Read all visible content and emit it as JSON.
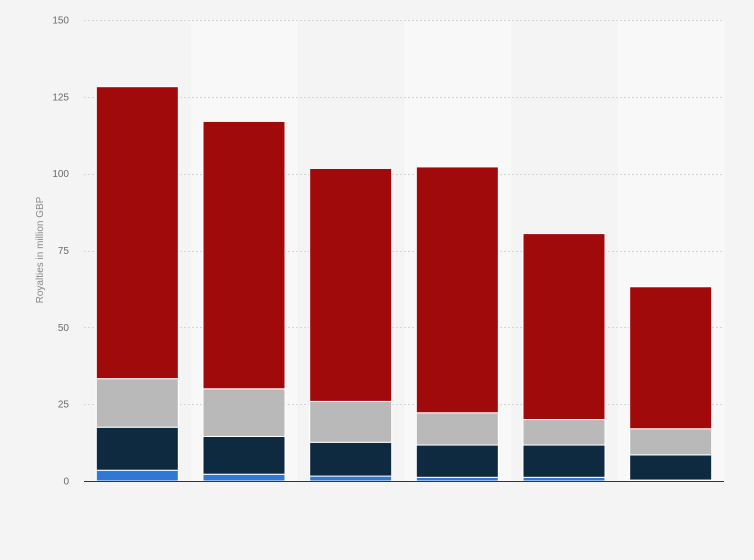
{
  "chart_data": {
    "type": "bar",
    "stacked": true,
    "title": "",
    "xlabel": "",
    "ylabel": "Royalties in million GBP",
    "ylim": [
      0,
      150
    ],
    "yticks": [
      0,
      25,
      50,
      75,
      100,
      125,
      150
    ],
    "ytick_labels": [
      "0",
      "25",
      "50",
      "75",
      "100",
      "125",
      "150"
    ],
    "grid": true,
    "legend": "none",
    "categories": [
      "",
      "",
      "",
      "",
      "",
      ""
    ],
    "series": [
      {
        "color": "#2f78d6",
        "values": [
          3.5,
          2.2,
          1.6,
          1.2,
          1.2,
          0.3
        ]
      },
      {
        "color": "#0e2a40",
        "values": [
          14.0,
          12.3,
          11.0,
          10.5,
          10.5,
          8.2
        ]
      },
      {
        "color": "#b9b9b9",
        "values": [
          15.8,
          15.5,
          13.3,
          10.5,
          8.3,
          8.5
        ]
      },
      {
        "color": "#a10a0a",
        "values": [
          95.0,
          87.0,
          75.8,
          80.0,
          60.5,
          46.2
        ]
      }
    ],
    "colors": {
      "background": "#f4f4f4",
      "alt_band": "#f8f8f8",
      "grid": "#d6d6d6",
      "axis": "#333333"
    }
  }
}
